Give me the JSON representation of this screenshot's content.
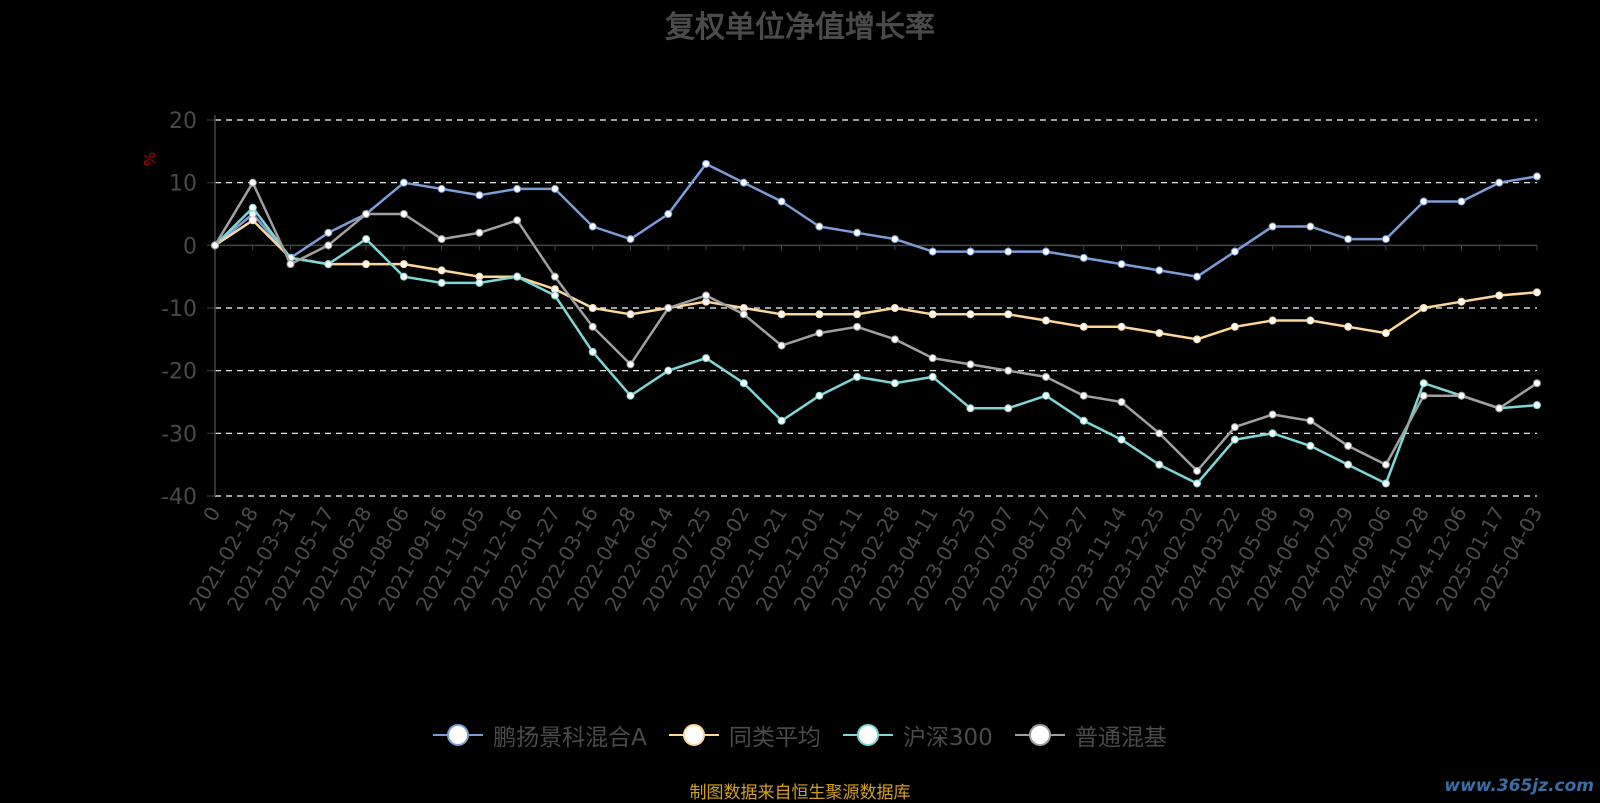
{
  "chart_data": {
    "type": "line",
    "title": "复权单位净值增长率",
    "ylabel": "%",
    "ylim": [
      -40,
      20
    ],
    "yticks": [
      20,
      10,
      0,
      -10,
      -20,
      -30,
      -40
    ],
    "grid": true,
    "legend_position": "bottom",
    "categories": [
      "0",
      "2021-02-18",
      "2021-03-31",
      "2021-05-17",
      "2021-06-28",
      "2021-08-06",
      "2021-09-16",
      "2021-11-05",
      "2021-12-16",
      "2022-01-27",
      "2022-03-16",
      "2022-04-28",
      "2022-06-14",
      "2022-07-25",
      "2022-09-02",
      "2022-10-21",
      "2022-12-01",
      "2023-01-11",
      "2023-02-28",
      "2023-04-11",
      "2023-05-25",
      "2023-07-07",
      "2023-08-17",
      "2023-09-27",
      "2023-11-14",
      "2023-12-25",
      "2024-02-02",
      "2024-03-22",
      "2024-05-08",
      "2024-06-19",
      "2024-07-29",
      "2024-09-06",
      "2024-10-28",
      "2024-12-06",
      "2025-01-17",
      "2025-04-03"
    ],
    "series": [
      {
        "name": "鹏扬景科混合A",
        "color": "#7b9ed9",
        "values": [
          0,
          5,
          -2,
          2,
          5,
          10,
          9,
          8,
          9,
          9,
          3,
          1,
          5,
          13,
          10,
          7,
          3,
          2,
          1,
          -1,
          -1,
          -1,
          -1,
          -2,
          -3,
          -4,
          -5,
          -1,
          3,
          3,
          1,
          1,
          7,
          7,
          10,
          11
        ]
      },
      {
        "name": "同类平均",
        "color": "#ffd699",
        "values": [
          0,
          4,
          -2,
          -3,
          -3,
          -3,
          -4,
          -5,
          -5,
          -7,
          -10,
          -11,
          -10,
          -9,
          -10,
          -11,
          -11,
          -11,
          -10,
          -11,
          -11,
          -11,
          -12,
          -13,
          -13,
          -14,
          -15,
          -13,
          -12,
          -12,
          -13,
          -14,
          -10,
          -9,
          -8,
          -7.5
        ]
      },
      {
        "name": "沪深300",
        "color": "#7fd6d6",
        "values": [
          0,
          6,
          -2,
          -3,
          1,
          -5,
          -6,
          -6,
          -5,
          -8,
          -17,
          -24,
          -20,
          -18,
          -22,
          -28,
          -24,
          -21,
          -22,
          -21,
          -26,
          -26,
          -24,
          -28,
          -31,
          -35,
          -38,
          -31,
          -30,
          -32,
          -35,
          -38,
          -22,
          -24,
          -26,
          -25.5
        ]
      },
      {
        "name": "普通混基",
        "color": "#a0a0a0",
        "values": [
          0,
          10,
          -3,
          0,
          5,
          5,
          1,
          2,
          4,
          -5,
          -13,
          -19,
          -10,
          -8,
          -11,
          -16,
          -14,
          -13,
          -15,
          -18,
          -19,
          -20,
          -21,
          -24,
          -25,
          -30,
          -36,
          -29,
          -27,
          -28,
          -32,
          -35,
          -24,
          -24,
          -26,
          -22
        ]
      }
    ]
  },
  "footer": "制图数据来自恒生聚源数据库",
  "watermark": "www.365jz.com"
}
